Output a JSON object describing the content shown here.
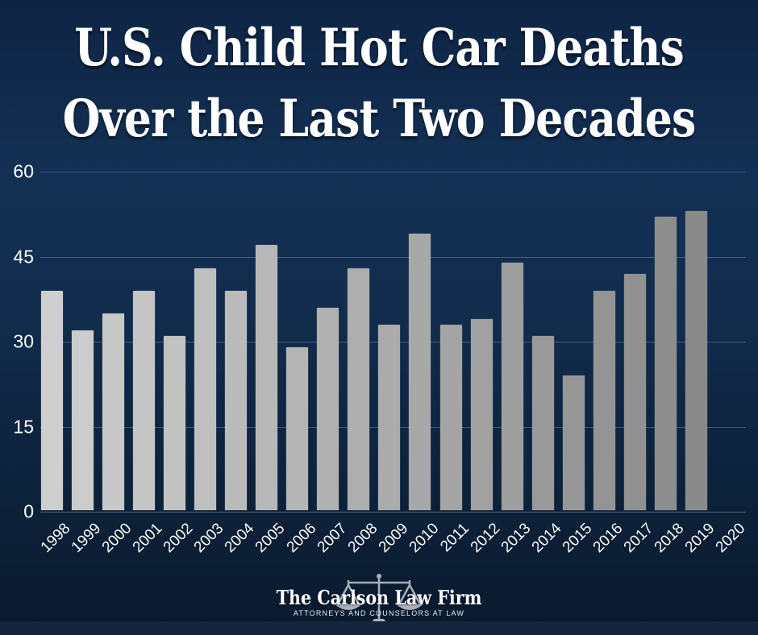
{
  "title": {
    "line1": "U.S. Child Hot Car Deaths",
    "line2": "Over the Last Two Decades"
  },
  "chart_data": {
    "type": "bar",
    "title": "U.S. Child Hot Car Deaths Over the Last Two Decades",
    "categories": [
      "1998",
      "1999",
      "2000",
      "2001",
      "2002",
      "2003",
      "2004",
      "2005",
      "2006",
      "2007",
      "2008",
      "2009",
      "2010",
      "2011",
      "2012",
      "2013",
      "2014",
      "2015",
      "2016",
      "2017",
      "2018",
      "2019",
      "2020"
    ],
    "values": [
      39,
      32,
      35,
      39,
      31,
      43,
      39,
      47,
      29,
      36,
      43,
      33,
      49,
      33,
      34,
      44,
      31,
      24,
      39,
      42,
      52,
      53,
      null
    ],
    "xlabel": "",
    "ylabel": "",
    "ylim": [
      0,
      60
    ],
    "yticks": [
      0,
      15,
      30,
      45,
      60
    ],
    "grid": true,
    "legend": "none",
    "bar_color_start": "#cfcfcf",
    "bar_color_end": "#8a8a8a"
  },
  "footer": {
    "brand": "The Carlson Law Firm",
    "tagline": "ATTORNEYS AND COUNSELORS AT LAW",
    "icon": "scales-of-justice-icon",
    "icon_color": "#b6bcc6"
  },
  "colors": {
    "background_top": "#0e2444",
    "background_mid": "#133054",
    "background_bottom": "#0a192d",
    "grid_line": "rgba(140,168,200,0.38)",
    "text": "#ffffff"
  }
}
